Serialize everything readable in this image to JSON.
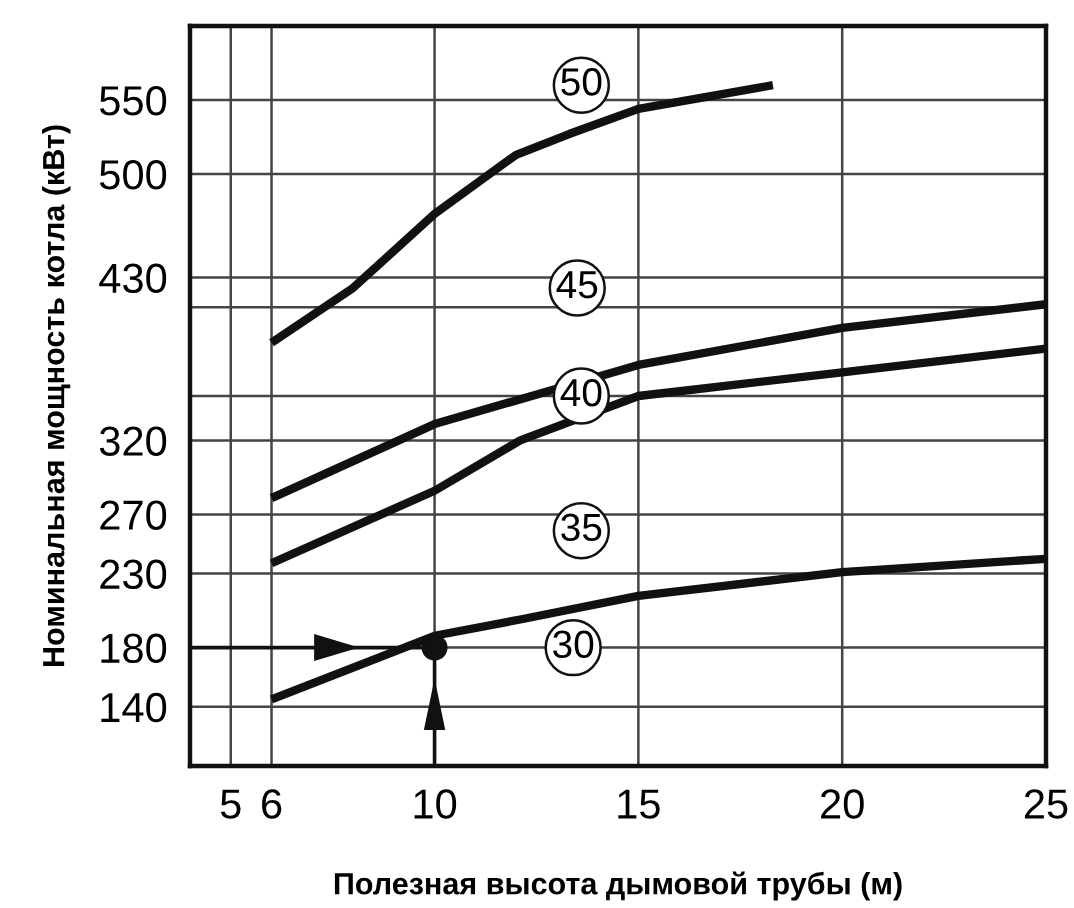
{
  "chart_data": {
    "type": "line",
    "xlabel": "Полезная высота дымовой трубы (м)",
    "ylabel": "Номинальная мощность котла (кВт)",
    "series": [
      {
        "color": "#111111",
        "x": [
          6,
          8,
          10,
          12,
          13.3,
          15,
          18.3
        ],
        "values": [
          386,
          423,
          473,
          513,
          527,
          544,
          560
        ]
      },
      {
        "color": "#111111",
        "x": [
          6,
          10,
          15,
          20,
          25
        ],
        "values": [
          281,
          331,
          371,
          396,
          412
        ]
      },
      {
        "color": "#111111",
        "x": [
          6,
          10,
          12.1,
          15,
          20,
          25
        ],
        "values": [
          237,
          286,
          320,
          350,
          366,
          382
        ]
      },
      {
        "color": "#111111",
        "x": [
          6,
          10,
          12.1,
          15,
          20,
          25
        ],
        "values": [
          145,
          188,
          199,
          215,
          231,
          240
        ]
      },
      {
        "type": "scatter",
        "marker": "circle",
        "color": "#111111",
        "x": [
          10
        ],
        "values": [
          180
        ]
      }
    ],
    "annotations": [
      {
        "text": "50",
        "x": 13.6,
        "y": 560
      },
      {
        "text": "45",
        "x": 13.5,
        "y": 423
      },
      {
        "text": "40",
        "x": 13.6,
        "y": 350
      },
      {
        "text": "35",
        "x": 13.6,
        "y": 259
      },
      {
        "text": "30",
        "x": 13.4,
        "y": 180
      }
    ],
    "xlim": [
      4,
      25
    ],
    "xticks": [
      5,
      6,
      10,
      15,
      20,
      25
    ],
    "ylim": [
      100,
      600
    ],
    "yticks": [
      140,
      180,
      230,
      270,
      320,
      {
        "value": 350,
        "label": null
      },
      {
        "value": 410,
        "label": null
      },
      430,
      500,
      550
    ],
    "grid": true,
    "marker": "none",
    "line_style": "solid"
  }
}
